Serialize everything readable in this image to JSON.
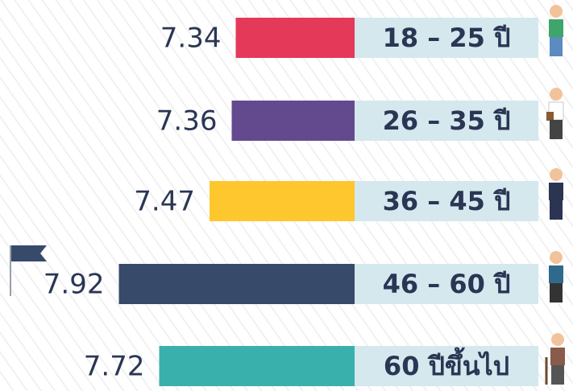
{
  "chart_data": {
    "type": "bar",
    "orientation": "horizontal",
    "categories": [
      "18 – 25 ปี",
      "26 – 35 ปี",
      "36 – 45 ปี",
      "46 – 60 ปี",
      "60 ปีขึ้นไป"
    ],
    "values": [
      7.34,
      7.36,
      7.47,
      7.92,
      7.72
    ],
    "colors": [
      "#e5395a",
      "#634a8f",
      "#fec72d",
      "#384a6a",
      "#3ab0ad"
    ],
    "xlim": [
      6.75,
      7.95
    ]
  }
}
